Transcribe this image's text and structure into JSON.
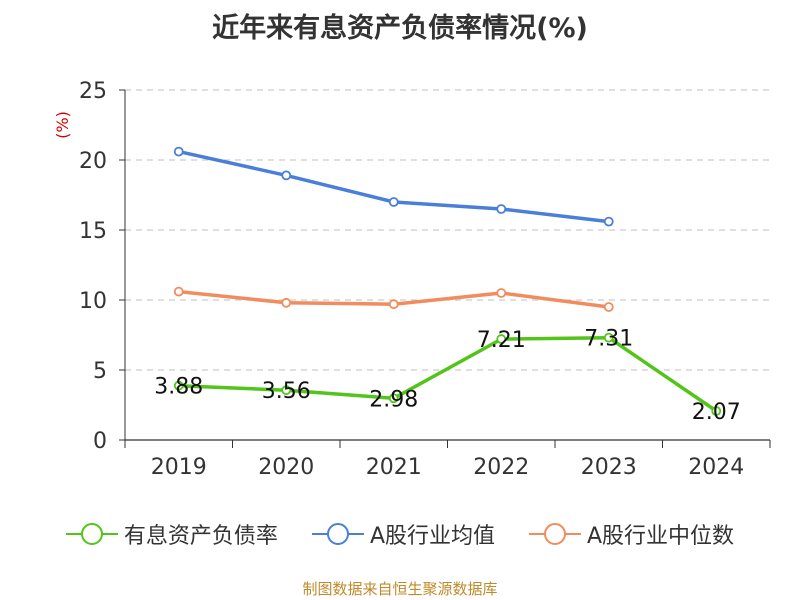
{
  "title": "近年来有息资产负债率情况(%)",
  "source_note": "制图数据来自恒生聚源数据库",
  "colors": {
    "primary": "#52c41a",
    "industry_avg": "#4a7fd9",
    "industry_median": "#f28c5e",
    "ylabel": "#d40000",
    "grid": "#cccccc",
    "axis": "#333333"
  },
  "chart_data": {
    "type": "line",
    "title": "近年来有息资产负债率情况(%)",
    "ylabel": "(%)",
    "xlabel": "",
    "categories": [
      "2019",
      "2020",
      "2021",
      "2022",
      "2023",
      "2024"
    ],
    "ylim": [
      0,
      25
    ],
    "yticks": [
      "0",
      "5",
      "10",
      "15",
      "20",
      "25"
    ],
    "grid": "dashed horizontal",
    "legend_position": "bottom",
    "series": [
      {
        "name": "有息资产负债率",
        "values": [
          3.88,
          3.56,
          2.98,
          7.21,
          7.31,
          2.07
        ],
        "labels": [
          "3.88",
          "3.56",
          "2.98",
          "7.21",
          "7.31",
          "2.07"
        ],
        "color": "#52c41a"
      },
      {
        "name": "A股行业均值",
        "values": [
          20.6,
          18.9,
          17.0,
          16.5,
          15.6,
          null
        ],
        "color": "#4a7fd9"
      },
      {
        "name": "A股行业中位数",
        "values": [
          10.6,
          9.8,
          9.7,
          10.5,
          9.5,
          null
        ],
        "color": "#f28c5e"
      }
    ]
  }
}
